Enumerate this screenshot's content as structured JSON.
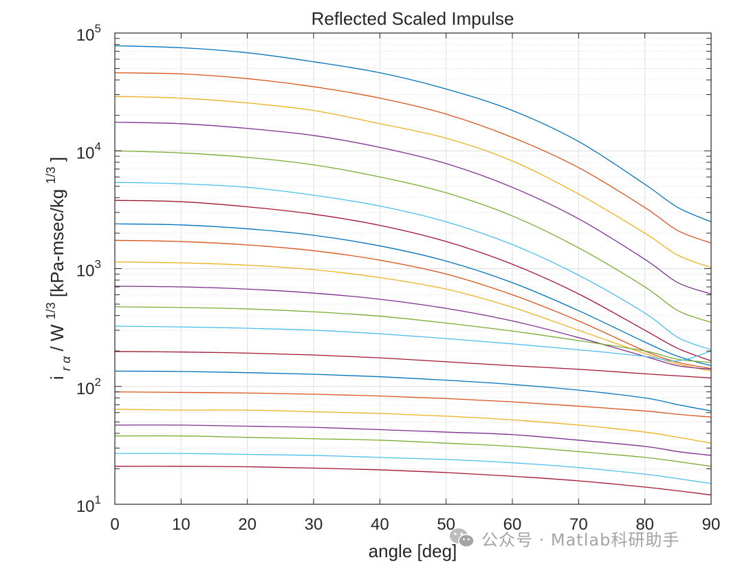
{
  "chart_data": {
    "type": "line",
    "title": "Reflected Scaled Impulse",
    "xlabel": "angle [deg]",
    "ylabel": {
      "i": "i",
      "sub": "r α",
      "mid": "/ W",
      "sup": "1/3",
      "units": "[kPa-msec/kg",
      "units_sup": "1/3",
      "close": "]"
    },
    "xlim": [
      0,
      90
    ],
    "ylim": [
      10,
      100000
    ],
    "y_scale": "log",
    "grid": true,
    "minor_grid": true,
    "x_ticks": [
      0,
      10,
      20,
      30,
      40,
      50,
      60,
      70,
      80,
      90
    ],
    "y_ticks": [
      {
        "base": "10",
        "exp": "1"
      },
      {
        "base": "10",
        "exp": "2"
      },
      {
        "base": "10",
        "exp": "3"
      },
      {
        "base": "10",
        "exp": "4"
      },
      {
        "base": "10",
        "exp": "5"
      }
    ],
    "colors": [
      "#0072BD",
      "#D95319",
      "#EDB120",
      "#7E2F8E",
      "#77AC30",
      "#4DBEEE",
      "#A2142F"
    ],
    "x": [
      0,
      10,
      20,
      30,
      40,
      50,
      60,
      70,
      80,
      85,
      90
    ],
    "series": [
      {
        "values": [
          78000,
          75000,
          68000,
          57000,
          46000,
          33500,
          22000,
          12000,
          5200,
          3300,
          2500
        ]
      },
      {
        "values": [
          46000,
          45000,
          41000,
          35000,
          28000,
          20500,
          13000,
          7200,
          3300,
          2100,
          1650
        ]
      },
      {
        "values": [
          29000,
          28000,
          25500,
          22000,
          17000,
          12800,
          8200,
          4300,
          2000,
          1300,
          1020
        ]
      },
      {
        "values": [
          17500,
          17000,
          15500,
          13500,
          10700,
          7800,
          4900,
          2650,
          1200,
          760,
          610
        ]
      },
      {
        "values": [
          10000,
          9600,
          8800,
          7600,
          6000,
          4400,
          2800,
          1500,
          700,
          440,
          350
        ]
      },
      {
        "values": [
          5400,
          5250,
          4900,
          4200,
          3400,
          2500,
          1600,
          880,
          420,
          260,
          205
        ]
      },
      {
        "values": [
          3800,
          3700,
          3350,
          2900,
          2330,
          1700,
          1090,
          610,
          300,
          210,
          165
        ]
      },
      {
        "values": [
          2400,
          2350,
          2180,
          1920,
          1560,
          1160,
          760,
          440,
          238,
          180,
          150
        ]
      },
      {
        "values": [
          1740,
          1700,
          1590,
          1420,
          1180,
          900,
          600,
          360,
          200,
          160,
          142
        ]
      },
      {
        "values": [
          1140,
          1120,
          1070,
          980,
          840,
          670,
          470,
          300,
          190,
          155,
          135
        ]
      },
      {
        "values": [
          710,
          700,
          670,
          620,
          550,
          460,
          360,
          260,
          180,
          150,
          140
        ]
      },
      {
        "values": [
          475,
          468,
          455,
          430,
          395,
          345,
          295,
          245,
          200,
          170,
          160
        ]
      },
      {
        "values": [
          325,
          320,
          312,
          300,
          280,
          255,
          230,
          205,
          180,
          165,
          200
        ]
      },
      {
        "values": [
          198,
          196,
          192,
          185,
          175,
          162,
          150,
          140,
          128,
          123,
          118
        ]
      },
      {
        "values": [
          135,
          134,
          131,
          127,
          121,
          113,
          104,
          93,
          80,
          70,
          62
        ]
      },
      {
        "values": [
          90,
          89,
          88,
          86,
          83,
          79,
          74,
          68,
          62,
          58,
          55
        ]
      },
      {
        "values": [
          64,
          63,
          63,
          61,
          59,
          56,
          52,
          47,
          41,
          37,
          33
        ]
      },
      {
        "values": [
          47,
          47,
          46,
          45,
          43,
          41,
          39,
          35,
          31,
          28,
          26
        ]
      },
      {
        "values": [
          38,
          38,
          37,
          36,
          35,
          33,
          31,
          28,
          25,
          23,
          21
        ]
      },
      {
        "values": [
          27,
          27,
          26.5,
          26,
          25,
          24,
          22.5,
          20.5,
          18,
          16.5,
          15
        ]
      },
      {
        "values": [
          21,
          21,
          20.8,
          20.3,
          19.6,
          18.6,
          17.3,
          15.8,
          14,
          13,
          12
        ]
      }
    ]
  },
  "watermark": {
    "text": "公众号 · Matlab科研助手"
  }
}
